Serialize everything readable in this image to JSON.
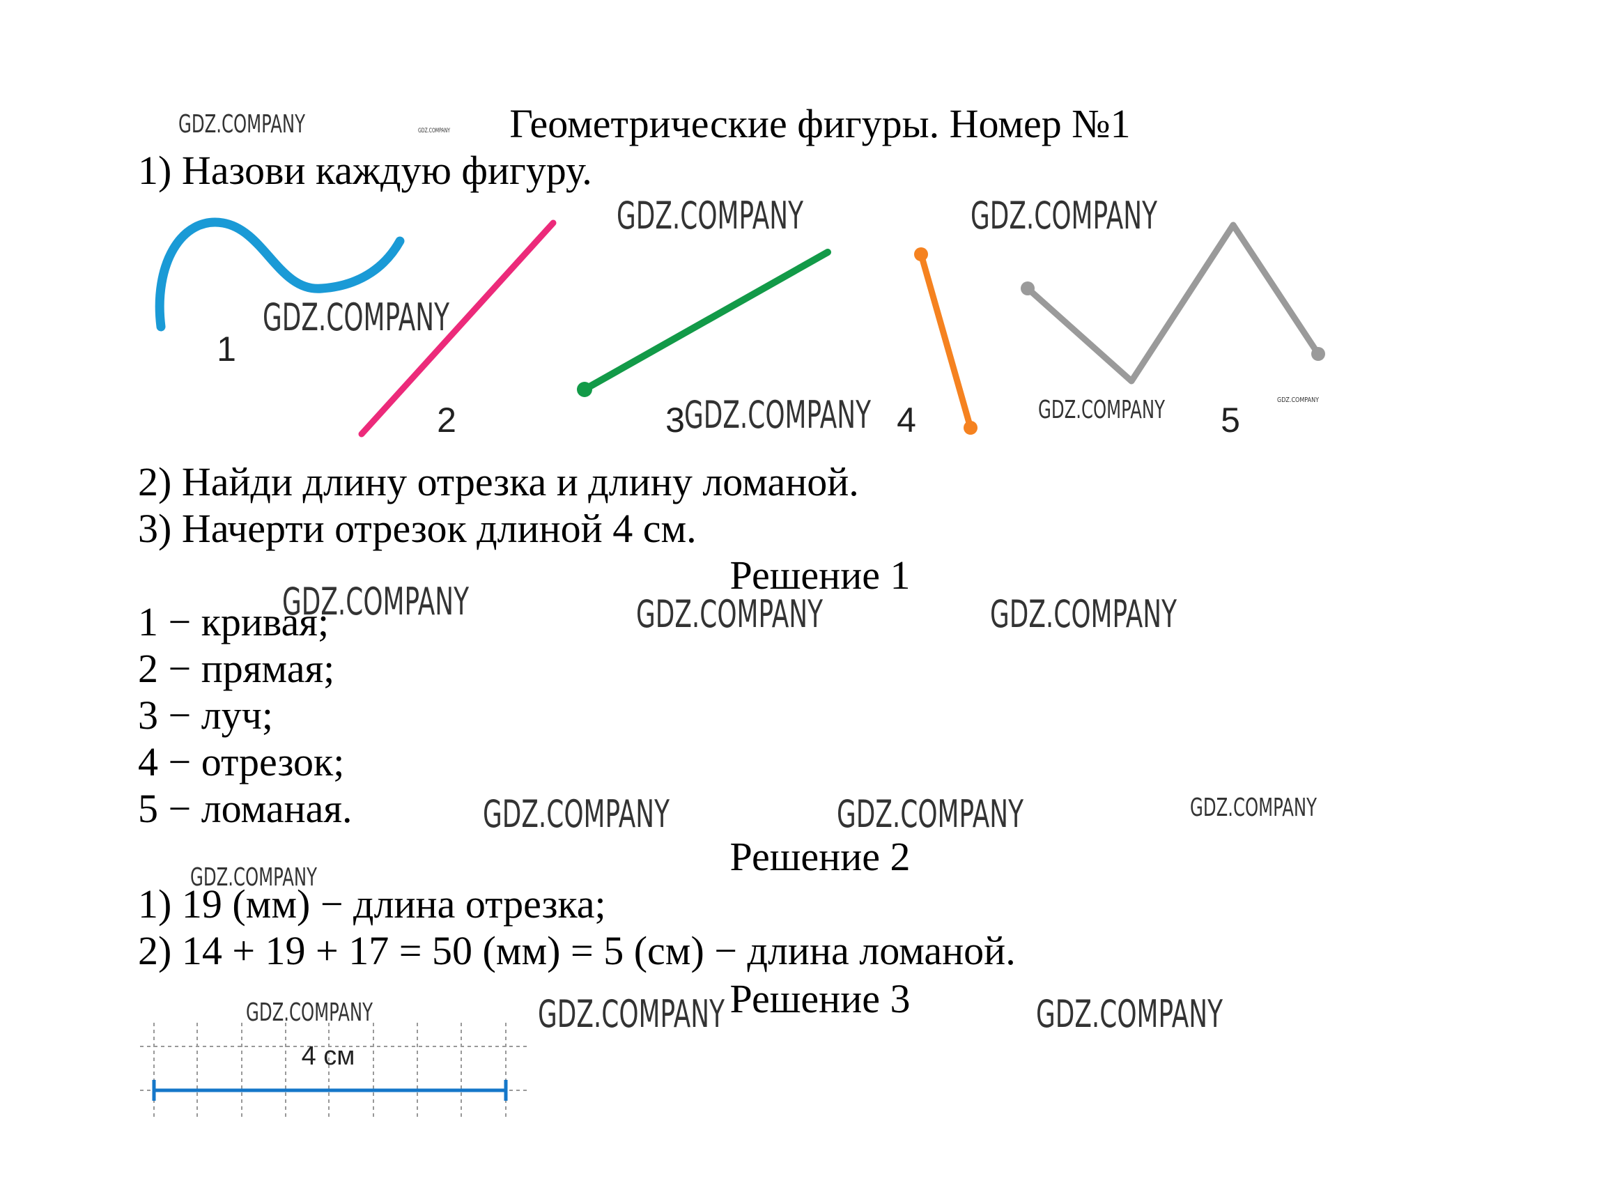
{
  "header": {
    "title": "Геометрические фигуры. Номер №1"
  },
  "tasks": [
    "1) Назови каждую фигуру.",
    "2) Найди длину отрезка и длину ломаной.",
    "3) Начерти отрезок длиной 4 см."
  ],
  "figure_labels": [
    "1",
    "2",
    "3",
    "4",
    "5"
  ],
  "solutions": [
    {
      "heading": "Решение 1",
      "lines": [
        "1 − кривая;",
        "2 − прямая;",
        "3 − луч;",
        "4 − отрезок;",
        "5 − ломаная."
      ]
    },
    {
      "heading": "Решение 2",
      "lines": [
        "1) 19 (мм) − длина отрезка;",
        "2) 14 + 19 + 17 = 50 (мм) = 5 (см) − длина ломаной."
      ]
    },
    {
      "heading": "Решение 3",
      "grid_label": "4 см"
    }
  ],
  "watermark": "GDZ.COMPANY"
}
